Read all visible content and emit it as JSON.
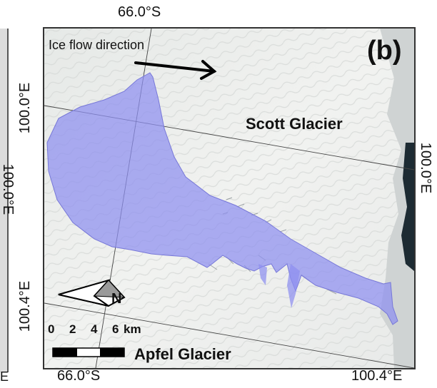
{
  "map": {
    "panel_label": "(b)",
    "places": {
      "scott_glacier": "Scott Glacier",
      "apfel_glacier": "Apfel Glacier"
    },
    "annotations": {
      "ice_flow": "Ice flow direction"
    },
    "coordinates": {
      "top_lat": "66.0°S",
      "bottom_lat": "66.0°S",
      "bottom_lon": "100.4°E",
      "left_upper_lon": "100.0°E",
      "left_lower_lon": "100.4°E",
      "right_lon": "100.0°E",
      "edge_lon": "100.0°E",
      "edge_lon_partial": "E"
    },
    "compass": {
      "north_label": "N"
    },
    "scale_bar": {
      "ticks": [
        "0",
        "2",
        "4",
        "6"
      ],
      "unit": "km"
    },
    "colors": {
      "glacier_highlight": "#8e8ff0",
      "ice_background": "#eef0ee",
      "rock_dark": "#1d2b33",
      "frame": "#333333"
    }
  }
}
